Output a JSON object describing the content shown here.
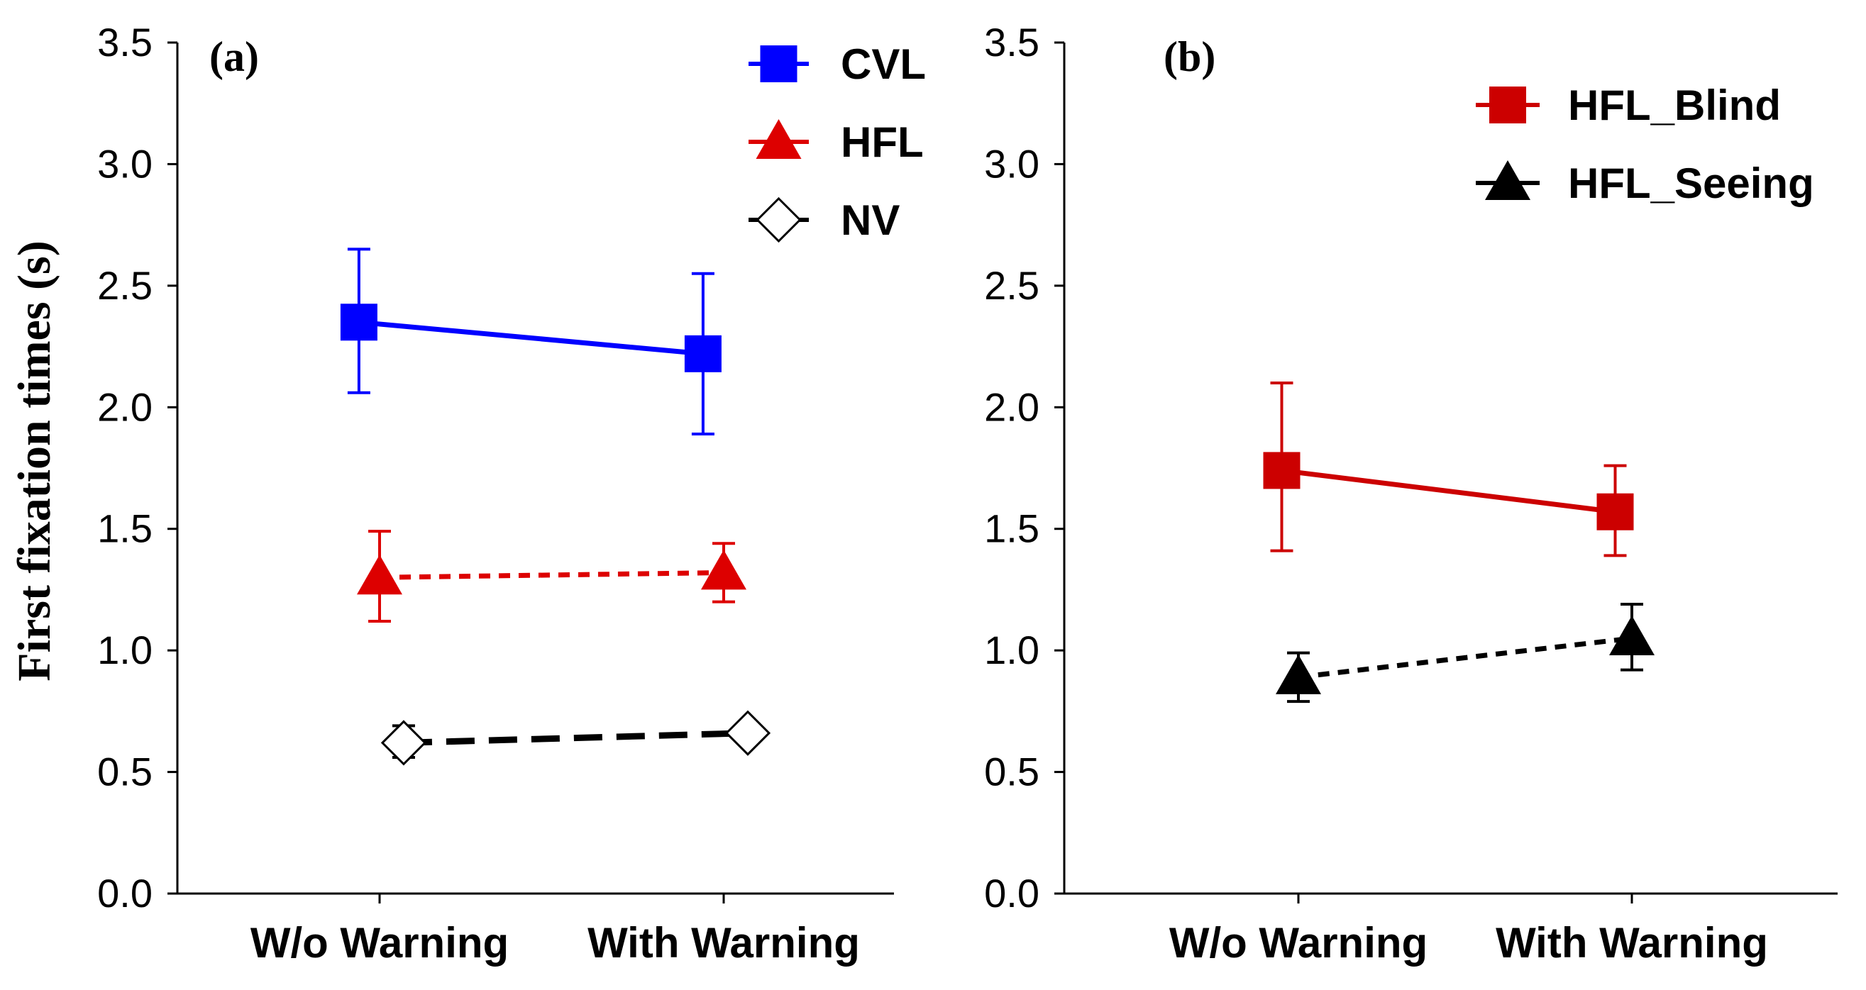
{
  "chart_data": [
    {
      "type": "line",
      "panel_label": "(a)",
      "ylabel": "First fixation times (s)",
      "xlabel": "",
      "ylim": [
        0,
        3.5
      ],
      "yticks": [
        "0.0",
        "0.5",
        "1.0",
        "1.5",
        "2.0",
        "2.5",
        "3.0",
        "3.5"
      ],
      "categories": [
        "W/o Warning",
        "With Warning"
      ],
      "legend_position": "top-right",
      "series": [
        {
          "name": "CVL",
          "color": "#0000ff",
          "marker": "square",
          "line": "solid",
          "values": [
            2.35,
            2.22
          ],
          "errors": [
            [
              2.06,
              2.65
            ],
            [
              1.89,
              2.55
            ]
          ],
          "offset": [
            -0.06,
            -0.06
          ]
        },
        {
          "name": "HFL",
          "color": "#dd0000",
          "marker": "triangle",
          "line": "dotted",
          "values": [
            1.3,
            1.32
          ],
          "errors": [
            [
              1.12,
              1.49
            ],
            [
              1.2,
              1.44
            ]
          ],
          "offset": [
            0.0,
            0.0
          ]
        },
        {
          "name": "NV",
          "color": "#000000",
          "marker": "diamond-open",
          "line": "dashed",
          "values": [
            0.62,
            0.66
          ],
          "errors": [
            [
              0.56,
              0.69
            ],
            [
              0.62,
              0.69
            ]
          ],
          "offset": [
            0.07,
            0.07
          ]
        }
      ]
    },
    {
      "type": "line",
      "panel_label": "(b)",
      "ylabel": "",
      "xlabel": "",
      "ylim": [
        0,
        3.5
      ],
      "yticks": [
        "0.0",
        "0.5",
        "1.0",
        "1.5",
        "2.0",
        "2.5",
        "3.0",
        "3.5"
      ],
      "categories": [
        "W/o Warning",
        "With Warning"
      ],
      "legend_position": "top-right",
      "series": [
        {
          "name": "HFL_Blind",
          "color": "#cc0000",
          "marker": "square",
          "line": "solid",
          "values": [
            1.74,
            1.57
          ],
          "errors": [
            [
              1.41,
              2.1
            ],
            [
              1.39,
              1.76
            ]
          ],
          "offset": [
            -0.05,
            -0.05
          ]
        },
        {
          "name": "HFL_Seeing",
          "color": "#000000",
          "marker": "triangle",
          "line": "dotted",
          "values": [
            0.89,
            1.05
          ],
          "errors": [
            [
              0.79,
              0.99
            ],
            [
              0.92,
              1.19
            ]
          ],
          "offset": [
            0.0,
            0.0
          ]
        }
      ]
    }
  ]
}
